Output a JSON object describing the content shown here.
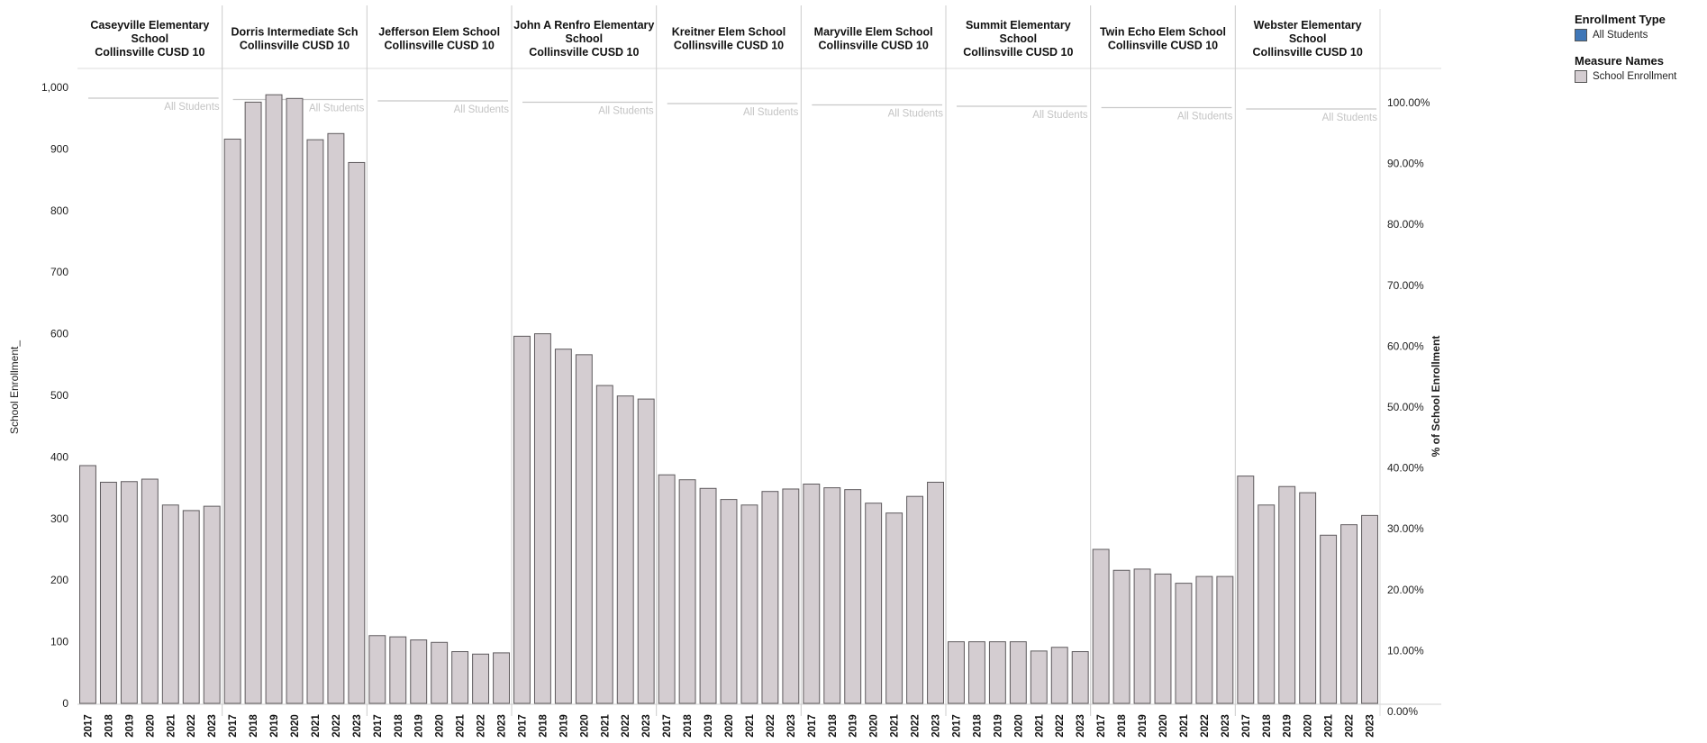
{
  "chart_data": {
    "type": "bar",
    "ylabel": "School Enrollment_",
    "y2label": "% of School Enrollment",
    "ylim": [
      0,
      1000
    ],
    "yticks": [
      "0",
      "100",
      "200",
      "300",
      "400",
      "500",
      "600",
      "700",
      "800",
      "900",
      "1,000"
    ],
    "y2ticks": [
      "0.00%",
      "10.00%",
      "20.00%",
      "30.00%",
      "40.00%",
      "50.00%",
      "60.00%",
      "70.00%",
      "80.00%",
      "90.00%",
      "100.00%"
    ],
    "years": [
      "2017",
      "2018",
      "2019",
      "2020",
      "2021",
      "2022",
      "2023"
    ],
    "series_label": "All Students",
    "bar_color": "#d4cdd1",
    "line_color": "#c8c8c8",
    "schools": [
      {
        "name": [
          "Caseyville Elementary",
          "School",
          "Collinsville CUSD 10"
        ],
        "values": [
          386,
          359,
          360,
          364,
          322,
          313,
          320
        ]
      },
      {
        "name": [
          "Dorris Intermediate Sch",
          "Collinsville CUSD 10"
        ],
        "values": [
          916,
          976,
          988,
          982,
          915,
          925,
          878
        ]
      },
      {
        "name": [
          "Jefferson Elem School",
          "Collinsville CUSD 10"
        ],
        "values": [
          110,
          108,
          103,
          99,
          84,
          80,
          82
        ]
      },
      {
        "name": [
          "John A Renfro Elementary",
          "School",
          "Collinsville CUSD 10"
        ],
        "values": [
          596,
          600,
          575,
          566,
          516,
          499,
          494
        ]
      },
      {
        "name": [
          "Kreitner Elem School",
          "Collinsville CUSD 10"
        ],
        "values": [
          371,
          363,
          349,
          331,
          322,
          344,
          348
        ]
      },
      {
        "name": [
          "Maryville Elem School",
          "Collinsville CUSD 10"
        ],
        "values": [
          356,
          350,
          347,
          325,
          309,
          336,
          359
        ]
      },
      {
        "name": [
          "Summit Elementary",
          "School",
          "Collinsville CUSD 10"
        ],
        "values": [
          100,
          100,
          100,
          100,
          85,
          91,
          84
        ]
      },
      {
        "name": [
          "Twin Echo Elem School",
          "Collinsville CUSD 10"
        ],
        "values": [
          250,
          216,
          218,
          210,
          195,
          206,
          206
        ]
      },
      {
        "name": [
          "Webster Elementary",
          "School",
          "Collinsville CUSD 10"
        ],
        "values": [
          369,
          322,
          352,
          342,
          273,
          290,
          305
        ]
      }
    ]
  },
  "legend": {
    "enrollment_type_title": "Enrollment Type",
    "enrollment_type_item": "All Students",
    "enrollment_type_color": "#3f77b8",
    "measure_names_title": "Measure Names",
    "measure_names_item": "School Enrollment",
    "measure_names_color": "#d4cdd1"
  }
}
